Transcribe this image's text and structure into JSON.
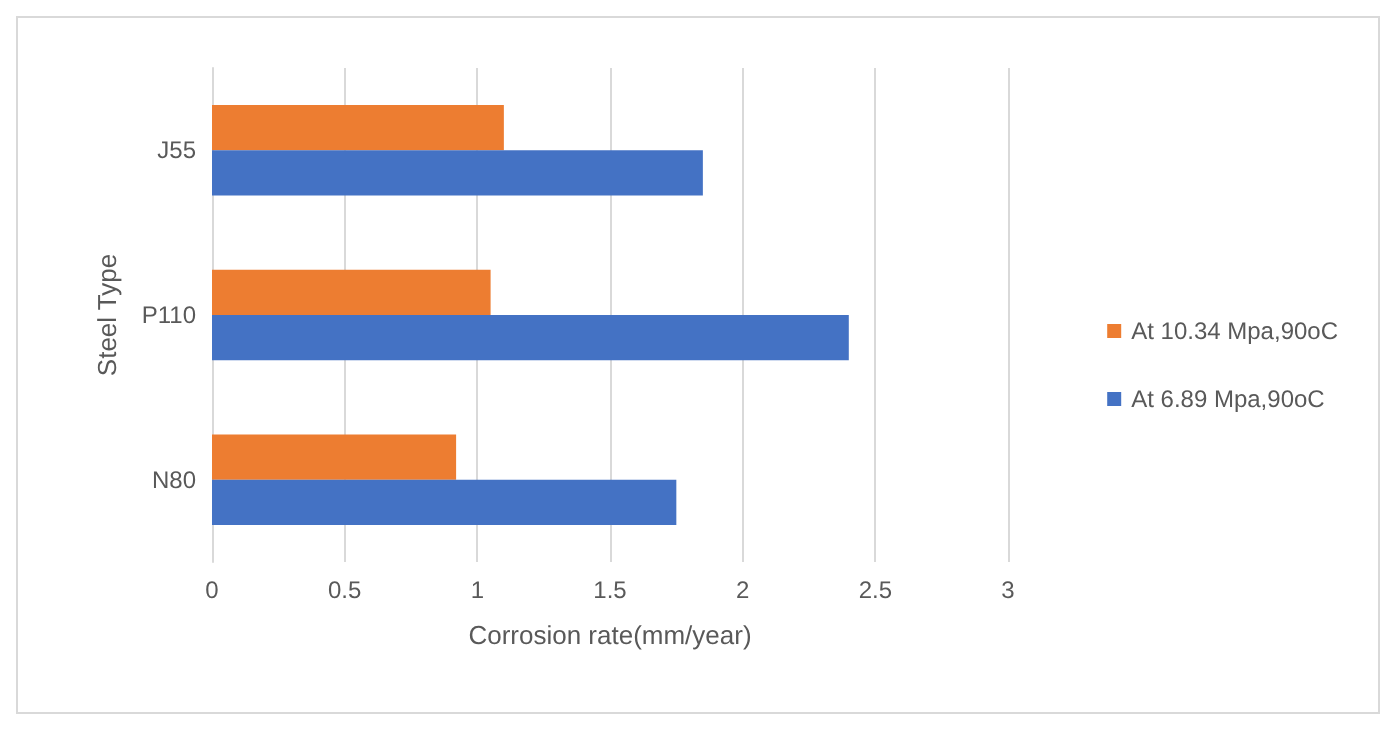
{
  "chart_data": {
    "type": "bar",
    "orientation": "horizontal",
    "categories": [
      "J55",
      "P110",
      "N80"
    ],
    "xlabel": "Corrosion rate(mm/year)",
    "ylabel": "Steel Type",
    "series": [
      {
        "name": "At 10.34 Mpa,90oC",
        "color": "#ed7d31",
        "values": [
          1.1,
          1.05,
          0.92
        ]
      },
      {
        "name": "At 6.89 Mpa,90oC",
        "color": "#4472c4",
        "values": [
          1.85,
          2.4,
          1.75
        ]
      }
    ],
    "xlim": [
      0,
      3
    ],
    "xticks": [
      0,
      0.5,
      1,
      1.5,
      2,
      2.5,
      3
    ],
    "grid": "x",
    "legend": "right"
  }
}
